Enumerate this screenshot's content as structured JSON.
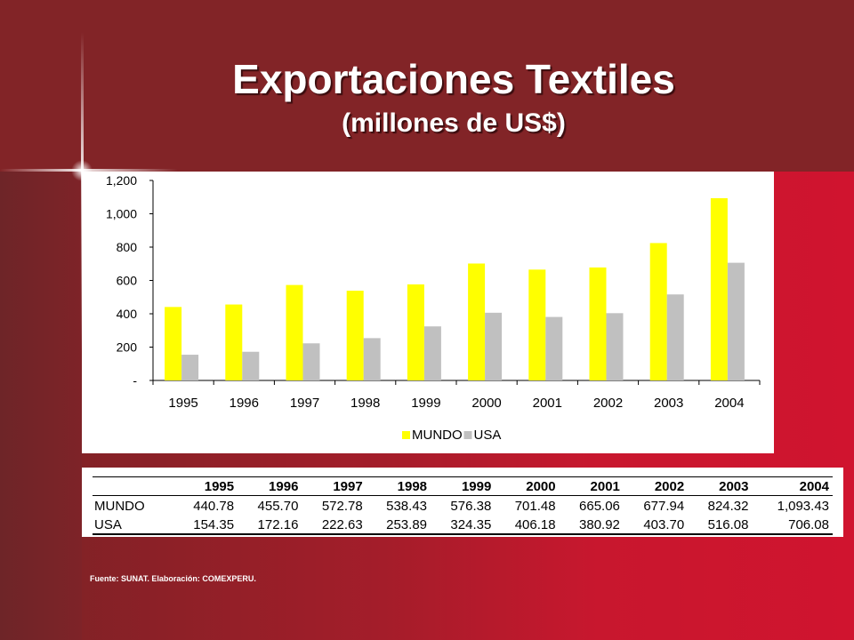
{
  "title": "Exportaciones Textiles",
  "subtitle": "(millones de US$)",
  "source": "Fuente: SUNAT. Elaboración: COMEXPERU.",
  "colors": {
    "mundo": "#ffff00",
    "usa": "#c0c0c0"
  },
  "chart_data": {
    "type": "bar",
    "categories": [
      "1995",
      "1996",
      "1997",
      "1998",
      "1999",
      "2000",
      "2001",
      "2002",
      "2003",
      "2004"
    ],
    "series": [
      {
        "name": "MUNDO",
        "values": [
          440.78,
          455.7,
          572.78,
          538.43,
          576.38,
          701.48,
          665.06,
          677.94,
          824.32,
          1093.43
        ]
      },
      {
        "name": "USA",
        "values": [
          154.35,
          172.16,
          222.63,
          253.89,
          324.35,
          406.18,
          380.92,
          403.7,
          516.08,
          706.08
        ]
      }
    ],
    "ylim": [
      0,
      1200
    ],
    "yticks": [
      0,
      200,
      400,
      600,
      800,
      1000,
      1200
    ],
    "ytick_labels": [
      "-",
      "200",
      "400",
      "600",
      "800",
      "1,000",
      "1,200"
    ],
    "legend_position": "bottom",
    "grid": false
  },
  "table": {
    "header": [
      "",
      "1995",
      "1996",
      "1997",
      "1998",
      "1999",
      "2000",
      "2001",
      "2002",
      "2003",
      "2004"
    ],
    "rows": [
      [
        "MUNDO",
        "440.78",
        "455.70",
        "572.78",
        "538.43",
        "576.38",
        "701.48",
        "665.06",
        "677.94",
        "824.32",
        "1,093.43"
      ],
      [
        "USA",
        "154.35",
        "172.16",
        "222.63",
        "253.89",
        "324.35",
        "406.18",
        "380.92",
        "403.70",
        "516.08",
        "706.08"
      ]
    ]
  }
}
